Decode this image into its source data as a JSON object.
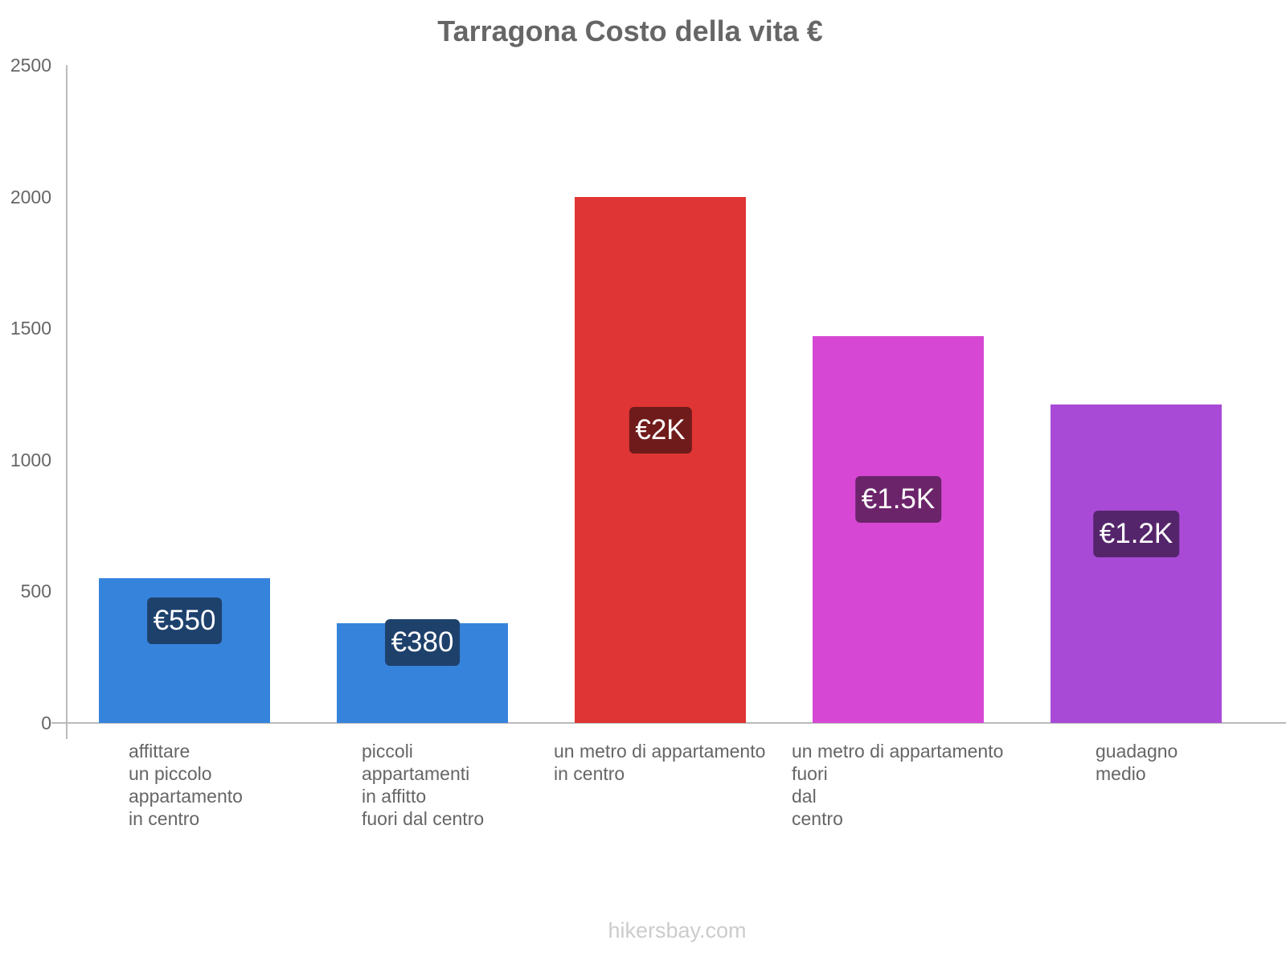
{
  "chart_data": {
    "type": "bar",
    "title": "Tarragona Costo della vita €",
    "xlabel": "",
    "ylabel": "",
    "ylim": [
      0,
      2500
    ],
    "yticks": [
      0,
      500,
      1000,
      1500,
      2000,
      2500
    ],
    "grid": false,
    "legend": null,
    "categories": [
      "affittare un piccolo appartamento in centro",
      "piccoli appartamenti in affitto fuori dal centro",
      "un metro di appartamento in centro",
      "un metro di appartamento fuori dal centro",
      "guadagno medio"
    ],
    "category_labels_wrapped": [
      "affittare\nun piccolo\nappartamento\nin centro",
      "piccoli\nappartamenti\nin affitto\nfuori dal centro",
      "un metro di appartamento\nin centro",
      "un metro di appartamento\nfuori\ndal\ncentro",
      "guadagno\nmedio"
    ],
    "values": [
      550,
      380,
      2000,
      1470,
      1210
    ],
    "data_labels": [
      "€550",
      "€380",
      "€2K",
      "€1.5K",
      "€1.2K"
    ],
    "bar_colors": [
      "#3683dc",
      "#3683dc",
      "#e03535",
      "#d648d4",
      "#a94ad6"
    ],
    "label_colors": [
      "#1e416c",
      "#1e416c",
      "#701b1b",
      "#6b246a",
      "#55256b"
    ]
  },
  "watermark": "hikersbay.com"
}
